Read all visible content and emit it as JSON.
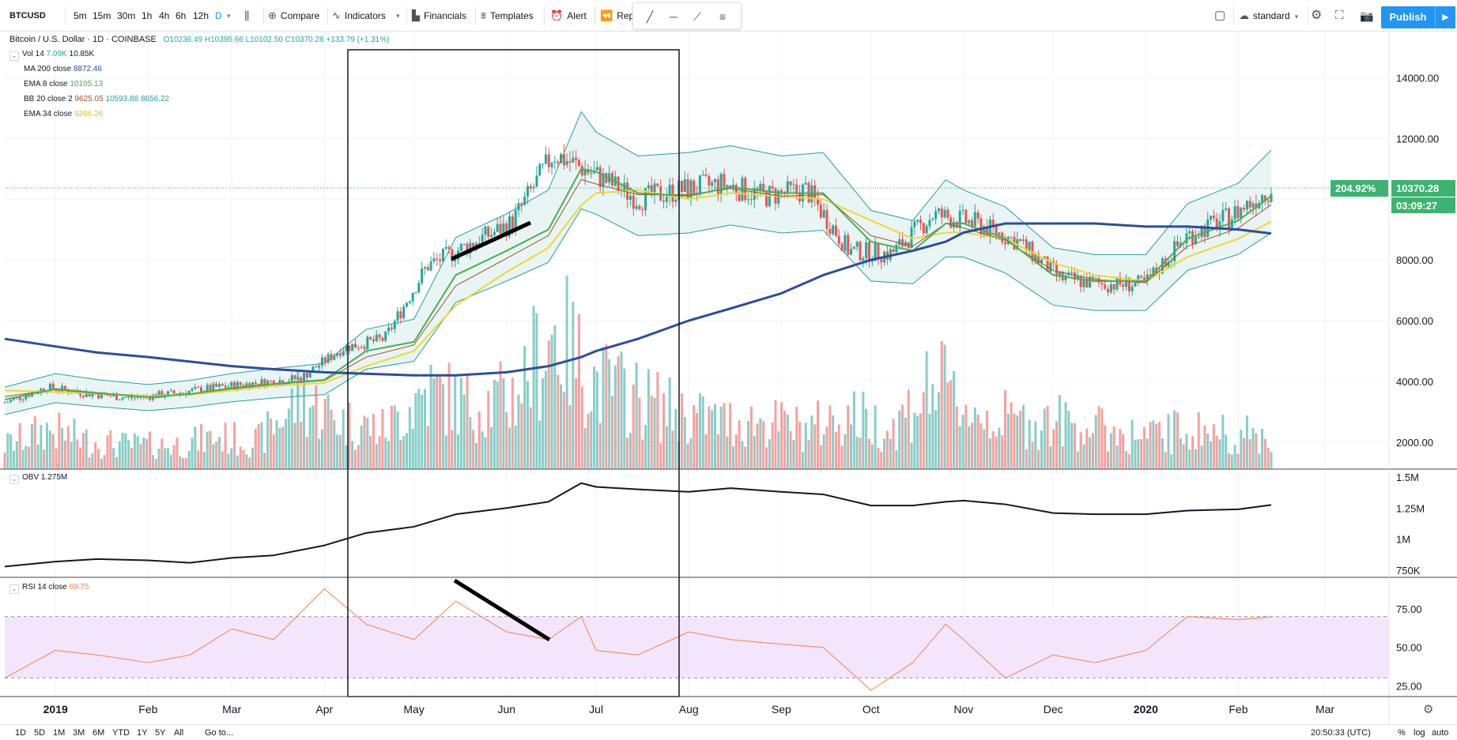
{
  "toolbar": {
    "symbol": "BTCUSD",
    "intervals": [
      "5m",
      "15m",
      "30m",
      "1h",
      "4h",
      "6h",
      "12h",
      "D"
    ],
    "compare": "Compare",
    "indicators": "Indicators",
    "financials": "Financials",
    "templates": "Templates",
    "alert": "Alert",
    "replay": "Rep",
    "layout_name": "standard",
    "publish": "Publish"
  },
  "legend": {
    "title": "Bitcoin / U.S. Dollar · 1D · COINBASE",
    "o": "O10236.49",
    "h": "H10395.66",
    "l": "L10102.50",
    "c": "C10370.28",
    "change": "+133.79 (+1.31%)",
    "vol_label": "Vol 14",
    "vol_v1": "7.09K",
    "vol_v2": "10.85K",
    "ma200_label": "MA 200 close",
    "ma200_value": "8872.46",
    "ema8_label": "EMA 8 close",
    "ema8_value": "10105.13",
    "bb_label": "BB 20 close 2",
    "bb_v1": "9625.05",
    "bb_v2": "10593.88",
    "bb_v3": "8656.22",
    "ema34_label": "EMA 34 close",
    "ema34_value": "9266.26",
    "obv_label": "OBV",
    "obv_value": "1.275M",
    "rsi_label": "RSI 14 close",
    "rsi_value": "69.75"
  },
  "price_axis": {
    "labels": [
      "14000.00",
      "12000.00",
      "8000.00",
      "6000.00",
      "4000.00",
      "2000.00"
    ],
    "pct_badge": "204.92%",
    "last_price": "10370.28",
    "countdown": "03:09:27"
  },
  "obv_axis": {
    "labels": [
      "1.5M",
      "1.25M",
      "1M",
      "750K"
    ]
  },
  "rsi_axis": {
    "labels": [
      "75.00",
      "50.00",
      "25.00"
    ]
  },
  "time_axis": {
    "labels": [
      "2019",
      "Feb",
      "Mar",
      "Apr",
      "May",
      "Jun",
      "Jul",
      "Aug",
      "Sep",
      "Oct",
      "Nov",
      "Dec",
      "2020",
      "Feb",
      "Mar"
    ]
  },
  "bottom": {
    "ranges": [
      "1D",
      "5D",
      "1M",
      "3M",
      "6M",
      "YTD",
      "1Y",
      "5Y",
      "All"
    ],
    "goto": "Go to...",
    "clock": "20:50:33 (UTC)",
    "pct": "%",
    "log": "log",
    "auto": "auto"
  },
  "colors": {
    "up": "#26a69a",
    "down": "#ef5350",
    "ma200": "#2c4f9b",
    "ema8": "#4caf50",
    "ema34": "#f0d733",
    "bb_basis": "#a0522d",
    "bb_band": "#2a9d9f",
    "bb_fill": "#e8f5f4",
    "rsi_line": "#f2844a",
    "rsi_band": "#f3e5fc",
    "accent": "#2196f3",
    "last_price_bg": "#3cb371"
  },
  "chart_data": {
    "type": "candlestick",
    "symbol": "BTCUSD",
    "interval": "1D",
    "x": [
      "2018-12-15",
      "2019-01-01",
      "2019-01-15",
      "2019-02-01",
      "2019-02-15",
      "2019-03-01",
      "2019-03-15",
      "2019-04-01",
      "2019-04-15",
      "2019-05-01",
      "2019-05-15",
      "2019-06-01",
      "2019-06-15",
      "2019-06-26",
      "2019-07-01",
      "2019-07-15",
      "2019-08-01",
      "2019-08-15",
      "2019-09-01",
      "2019-09-15",
      "2019-10-01",
      "2019-10-15",
      "2019-10-26",
      "2019-11-01",
      "2019-11-15",
      "2019-12-01",
      "2019-12-15",
      "2020-01-01",
      "2020-01-15",
      "2020-02-01",
      "2020-02-12"
    ],
    "series": [
      {
        "name": "Close",
        "values": [
          3300,
          3800,
          3600,
          3450,
          3600,
          3800,
          3950,
          4100,
          5100,
          5400,
          7800,
          8500,
          9200,
          11500,
          10800,
          10000,
          10300,
          10500,
          10100,
          10300,
          8300,
          8200,
          9500,
          9200,
          8600,
          7400,
          7200,
          7200,
          8800,
          9400,
          10370
        ]
      },
      {
        "name": "MA 200 close",
        "values": [
          5400,
          5150,
          4950,
          4800,
          4650,
          4500,
          4400,
          4300,
          4250,
          4200,
          4200,
          4300,
          4500,
          4800,
          5000,
          5400,
          6000,
          6400,
          6900,
          7500,
          8000,
          8300,
          8600,
          8900,
          9200,
          9200,
          9200,
          9100,
          9100,
          9000,
          8872
        ]
      },
      {
        "name": "EMA 8 close",
        "values": [
          3400,
          3750,
          3620,
          3480,
          3580,
          3780,
          3920,
          4050,
          5000,
          5300,
          7500,
          8300,
          9000,
          11000,
          10900,
          10200,
          10100,
          10400,
          10200,
          10200,
          8600,
          8300,
          9200,
          9200,
          8700,
          7500,
          7300,
          7300,
          8700,
          9300,
          10105
        ]
      },
      {
        "name": "EMA 34 close",
        "values": [
          3700,
          3650,
          3600,
          3520,
          3560,
          3700,
          3850,
          3950,
          4500,
          5000,
          6500,
          7600,
          8400,
          9800,
          10200,
          10300,
          10000,
          10200,
          10100,
          10000,
          9300,
          8700,
          8900,
          8900,
          8700,
          7900,
          7500,
          7300,
          8100,
          8700,
          9266
        ]
      },
      {
        "name": "Volume",
        "values": [
          6,
          10,
          7,
          6,
          6,
          8,
          7,
          18,
          12,
          10,
          20,
          16,
          18,
          35,
          22,
          18,
          14,
          12,
          12,
          10,
          14,
          10,
          22,
          14,
          12,
          12,
          10,
          8,
          10,
          9,
          8
        ]
      },
      {
        "name": "OBV",
        "values": [
          0.78,
          0.82,
          0.84,
          0.83,
          0.81,
          0.85,
          0.87,
          0.95,
          1.05,
          1.1,
          1.2,
          1.25,
          1.3,
          1.45,
          1.42,
          1.4,
          1.38,
          1.41,
          1.38,
          1.36,
          1.27,
          1.27,
          1.3,
          1.31,
          1.28,
          1.21,
          1.2,
          1.2,
          1.23,
          1.24,
          1.275
        ]
      },
      {
        "name": "RSI 14 close",
        "values": [
          30,
          48,
          45,
          40,
          45,
          62,
          55,
          88,
          65,
          55,
          80,
          60,
          55,
          70,
          48,
          45,
          60,
          55,
          52,
          50,
          22,
          40,
          65,
          55,
          30,
          45,
          40,
          48,
          70,
          68,
          69.75
        ]
      }
    ],
    "price_ylim": [
      1500,
      15000
    ],
    "obv_ylim": [
      0.7,
      1.55
    ],
    "rsi_ylim": [
      20,
      95
    ]
  }
}
